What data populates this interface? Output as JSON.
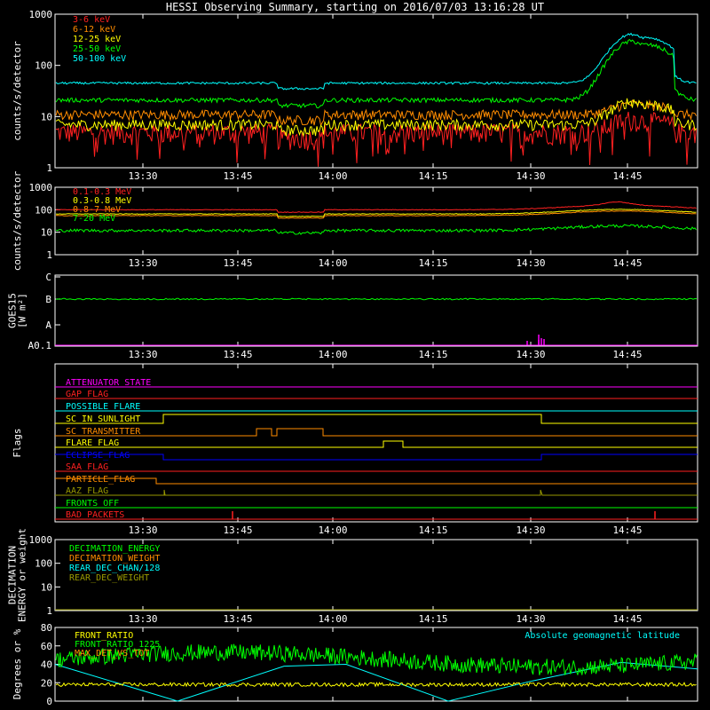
{
  "title": "HESSI Observing Summary, starting on 2016/07/03 13:16:28 UT",
  "time_ticks": [
    "13:30",
    "13:45",
    "14:00",
    "14:15",
    "14:30",
    "14:45"
  ],
  "chart_data": [
    {
      "type": "line",
      "name": "energy-counts",
      "ylabel": "counts/s/detector",
      "yscale": "log",
      "ylim": [
        1,
        1000
      ],
      "y_ticks": [
        "1",
        "10",
        "100",
        "1000"
      ],
      "series": [
        {
          "name": "3-6 keV",
          "color": "#ff2020",
          "level": 5,
          "noise": 0.45,
          "flare": 1.8,
          "dips": true
        },
        {
          "name": "6-12 keV",
          "color": "#ff8c00",
          "level": 11,
          "noise": 0.22,
          "flare": 1.6
        },
        {
          "name": "12-25 keV",
          "color": "#ffff00",
          "level": 7,
          "noise": 0.25,
          "flare": 2.8
        },
        {
          "name": "25-50 keV",
          "color": "#00ff00",
          "level": 21,
          "noise": 0.1,
          "flare": 14
        },
        {
          "name": "50-100 keV",
          "color": "#00ffff",
          "level": 45,
          "noise": 0.05,
          "flare": 9
        }
      ]
    },
    {
      "type": "line",
      "name": "mev-counts",
      "ylabel": "counts/s/detector",
      "yscale": "log",
      "ylim": [
        1,
        1000
      ],
      "y_ticks": [
        "1",
        "10",
        "100",
        "1000"
      ],
      "series": [
        {
          "name": "0.1-0.3 MeV",
          "color": "#ff2020",
          "level": 100,
          "noise": 0.03,
          "flare": 1.7
        },
        {
          "name": "0.3-0.8 MeV",
          "color": "#ffff00",
          "level": 65,
          "noise": 0.03,
          "flare": 1.6
        },
        {
          "name": "0.8-7 MeV",
          "color": "#ff8c00",
          "level": 55,
          "noise": 0.03,
          "flare": 1.7
        },
        {
          "name": "7-20 MeV",
          "color": "#00ff00",
          "level": 12,
          "noise": 0.15,
          "flare": 1.0
        }
      ]
    },
    {
      "type": "line",
      "name": "goes15",
      "ylabel": "GOES15 [W m²]",
      "ylabel_lines": [
        "GOES15",
        "[W m²]"
      ],
      "y_ticks": [
        "A0.1",
        "A",
        "B",
        "C"
      ],
      "series": [
        {
          "name": "GOES15",
          "color": "#00ff00",
          "level": "B"
        }
      ]
    },
    {
      "type": "line",
      "name": "flags",
      "ylabel": "Flags",
      "series": [
        {
          "name": "ATTENUATOR_STATE",
          "color": "#ff00ff"
        },
        {
          "name": "GAP_FLAG",
          "color": "#ff2020"
        },
        {
          "name": "POSSIBLE_FLARE",
          "color": "#00ffff"
        },
        {
          "name": "SC_IN_SUNLIGHT",
          "color": "#ffff00"
        },
        {
          "name": "SC_TRANSMITTER",
          "color": "#ff8c00"
        },
        {
          "name": "FLARE_FLAG",
          "color": "#ffff00"
        },
        {
          "name": "ECLIPSE_FLAG",
          "color": "#0000ff"
        },
        {
          "name": "SAA_FLAG",
          "color": "#ff2020"
        },
        {
          "name": "PARTICLE_FLAG",
          "color": "#ff8c00"
        },
        {
          "name": "AAZ_FLAG",
          "color": "#999900"
        },
        {
          "name": "FRONTS_OFF",
          "color": "#00ff00"
        },
        {
          "name": "BAD_PACKETS",
          "color": "#ff2020"
        }
      ]
    },
    {
      "type": "line",
      "name": "decimation",
      "ylabel": "DECIMATION ENERGY or weight",
      "ylabel_lines": [
        "DECIMATION",
        "ENERGY or weight"
      ],
      "yscale": "log",
      "ylim": [
        1,
        1000
      ],
      "y_ticks": [
        "1",
        "10",
        "100",
        "1000"
      ],
      "series": [
        {
          "name": "DECIMATION_ENERGY",
          "color": "#00ff00"
        },
        {
          "name": "DECIMATION_WEIGHT",
          "color": "#ff8c00"
        },
        {
          "name": "REAR_DEC_CHAN/128",
          "color": "#00ffff"
        },
        {
          "name": "REAR_DEC_WEIGHT",
          "color": "#999900"
        }
      ]
    },
    {
      "type": "line",
      "name": "ratios",
      "ylabel": "Degrees or %",
      "ylim": [
        0,
        80
      ],
      "y_ticks": [
        "0",
        "20",
        "40",
        "60",
        "80"
      ],
      "annotation": "Absolute geomagnetic latitude",
      "series": [
        {
          "name": "FRONT_RATIO",
          "color": "#ffff00",
          "level": 18
        },
        {
          "name": "FRONT_RATIO_1225",
          "color": "#00ff00",
          "level": 45
        },
        {
          "name": "MAX_DET_VS_TOT",
          "color": "#ff8c00"
        },
        {
          "name": "Absolute geomagnetic latitude",
          "color": "#00ffff"
        }
      ]
    }
  ]
}
